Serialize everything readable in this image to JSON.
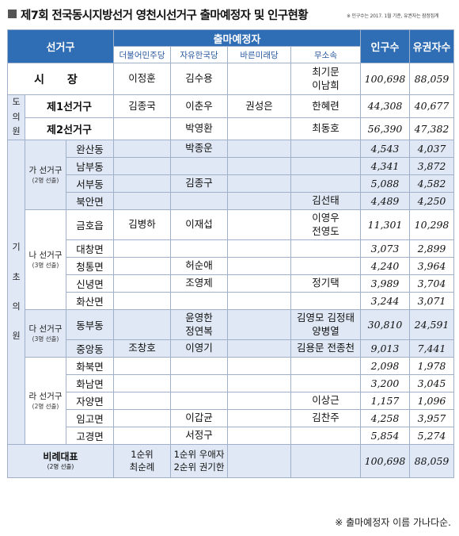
{
  "title": "제7회 전국동시지방선거 영천시선거구 출마예정자 및 인구현황",
  "title_note": "※ 인구수는 2017. 1월 기준, 유권자는 잠정집계",
  "colors": {
    "header_bg": "#2f6db4",
    "tint_bg": "#dfe8f4",
    "border": "#9fb0c8"
  },
  "headers": {
    "district": "선거구",
    "candidates": "출마예정자",
    "parties": [
      "더불어민주당",
      "자유한국당",
      "바른미래당",
      "무소속"
    ],
    "population": "인구수",
    "voters": "유권자수"
  },
  "mayor": {
    "label": "시  장",
    "dem": "이정훈",
    "lib": "김수용",
    "bar": "",
    "ind": "최기문\n이남희",
    "pop": "100,698",
    "voters": "88,059"
  },
  "provincial": {
    "side": "도\n의\n원",
    "rows": [
      {
        "name": "제1선거구",
        "dem": "김종국",
        "lib": "이춘우",
        "bar": "권성은",
        "ind": "한혜련",
        "pop": "44,308",
        "voters": "40,677"
      },
      {
        "name": "제2선거구",
        "dem": "",
        "lib": "박영환",
        "bar": "",
        "ind": "최동호",
        "pop": "56,390",
        "voters": "47,382"
      }
    ]
  },
  "city_side": "기\n\n초\n\n의\n\n원",
  "groups": [
    {
      "name": "가 선거구",
      "seats": "(2명 선출)",
      "rows": [
        {
          "name": "완산동",
          "dem": "",
          "lib": "박종운",
          "bar": "",
          "ind": "",
          "pop": "4,543",
          "voters": "4,037"
        },
        {
          "name": "남부동",
          "dem": "",
          "lib": "",
          "bar": "",
          "ind": "",
          "pop": "4,341",
          "voters": "3,872"
        },
        {
          "name": "서부동",
          "dem": "",
          "lib": "김종구",
          "bar": "",
          "ind": "",
          "pop": "5,088",
          "voters": "4,582"
        },
        {
          "name": "북안면",
          "dem": "",
          "lib": "",
          "bar": "",
          "ind": "김선태",
          "pop": "4,489",
          "voters": "4,250"
        }
      ]
    },
    {
      "name": "나 선거구",
      "seats": "(3명 선출)",
      "rows": [
        {
          "name": "금호읍",
          "dem": "김병하",
          "lib": "이재섭",
          "bar": "",
          "ind": "이영우\n전영도",
          "pop": "11,301",
          "voters": "10,298"
        },
        {
          "name": "대창면",
          "dem": "",
          "lib": "",
          "bar": "",
          "ind": "",
          "pop": "3,073",
          "voters": "2,899"
        },
        {
          "name": "청통면",
          "dem": "",
          "lib": "허순애",
          "bar": "",
          "ind": "",
          "pop": "4,240",
          "voters": "3,964"
        },
        {
          "name": "신녕면",
          "dem": "",
          "lib": "조영제",
          "bar": "",
          "ind": "정기택",
          "pop": "3,989",
          "voters": "3,704"
        },
        {
          "name": "화산면",
          "dem": "",
          "lib": "",
          "bar": "",
          "ind": "",
          "pop": "3,244",
          "voters": "3,071"
        }
      ]
    },
    {
      "name": "다 선거구",
      "seats": "(3명 선출)",
      "rows": [
        {
          "name": "동부동",
          "dem": "",
          "lib": "윤영한\n정연복",
          "bar": "",
          "ind": "김영모 김정태\n양병열",
          "pop": "30,810",
          "voters": "24,591"
        },
        {
          "name": "중앙동",
          "dem": "조창호",
          "lib": "이영기",
          "bar": "",
          "ind": "김용문 전종천",
          "pop": "9,013",
          "voters": "7,441"
        }
      ]
    },
    {
      "name": "라 선거구",
      "seats": "(2명 선출)",
      "rows": [
        {
          "name": "화북면",
          "dem": "",
          "lib": "",
          "bar": "",
          "ind": "",
          "pop": "2,098",
          "voters": "1,978"
        },
        {
          "name": "화남면",
          "dem": "",
          "lib": "",
          "bar": "",
          "ind": "",
          "pop": "3,200",
          "voters": "3,045"
        },
        {
          "name": "자양면",
          "dem": "",
          "lib": "",
          "bar": "",
          "ind": "이상근",
          "pop": "1,157",
          "voters": "1,096"
        },
        {
          "name": "임고면",
          "dem": "",
          "lib": "이갑균",
          "bar": "",
          "ind": "김찬주",
          "pop": "4,258",
          "voters": "3,957"
        },
        {
          "name": "고경면",
          "dem": "",
          "lib": "서정구",
          "bar": "",
          "ind": "",
          "pop": "5,854",
          "voters": "5,274"
        }
      ]
    }
  ],
  "proportional": {
    "label": "비례대표",
    "seats": "(2명 선출)",
    "dem": "1순위\n최순례",
    "lib": "1순위 우애자\n2순위 권기한",
    "bar": "",
    "ind": "",
    "pop": "100,698",
    "voters": "88,059"
  },
  "footnote": "※ 출마예정자 이름 가나다순."
}
